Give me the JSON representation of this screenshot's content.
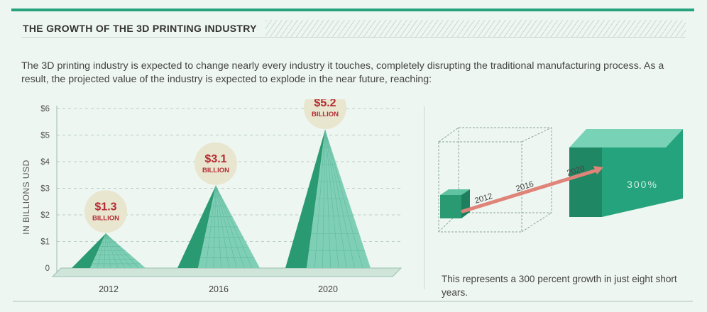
{
  "header": {
    "title": "THE GROWTH OF THE 3D PRINTING INDUSTRY"
  },
  "intro_text": "The 3D printing industry is expected to change nearly every industry it touches, completely disrupting the traditional manufacturing process. As a result, the projected value of the industry is expected to explode in the near future, reaching:",
  "colors": {
    "accent": "#25a37c",
    "pyramid_dark": "#2a9a72",
    "pyramid_light": "#7fcfb6",
    "label_red": "#b52a33",
    "circle_bg": "#e8e6cf",
    "arrow": "#e0847a"
  },
  "chart_data": {
    "type": "bar",
    "ylabel": "IN BILLIONS USD",
    "ylim": [
      0,
      6
    ],
    "yticks": [
      "0",
      "$1",
      "$2",
      "$3",
      "$4",
      "$5",
      "$6"
    ],
    "categories": [
      "2012",
      "2016",
      "2020"
    ],
    "values": [
      1.3,
      3.1,
      5.2
    ],
    "value_labels": [
      "$1.3",
      "$3.1",
      "$5.2"
    ],
    "unit_label": "BILLION",
    "grid": true
  },
  "cube_graphic": {
    "year_labels": [
      "2012",
      "2016",
      "2020"
    ],
    "growth_label": "300%"
  },
  "caption": "This represents a 300 percent growth in just eight short years."
}
